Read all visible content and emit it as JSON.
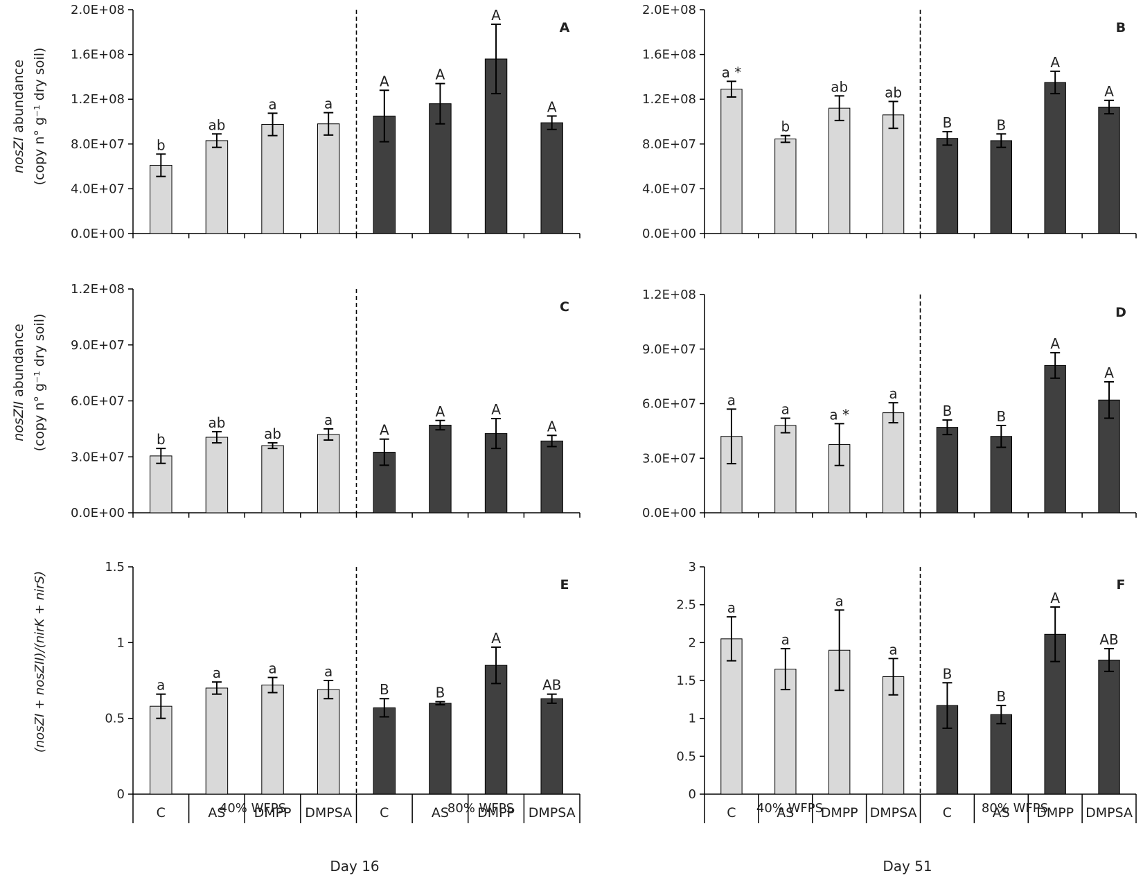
{
  "colors": {
    "low_wfps_fill": "#d9d9d9",
    "high_wfps_fill": "#404040",
    "outline": "#000000"
  },
  "bottom_labels": {
    "groups_left": [
      "40% WFPS",
      "80% WFPS"
    ],
    "groups_right": [
      "40% WFPS",
      "80% WFPS"
    ],
    "day_left": "Day 16",
    "day_right": "Day 51"
  },
  "y_labels": {
    "nosZI": {
      "gene": "nosZI",
      "suffix": " abundance",
      "unit": "(copy n° g⁻¹ dry soil)"
    },
    "nosZII": {
      "gene": "nosZII",
      "suffix": " abundance",
      "unit": "(copy n° g⁻¹ dry soil)"
    },
    "ratio": "(nosZI + nosZII)/(nirK + nirS)"
  },
  "chart_data": [
    {
      "panel": "A",
      "type": "bar",
      "categories": [
        "C",
        "AS",
        "DMPP",
        "DMPSA",
        "C",
        "AS",
        "DMPP",
        "DMPSA"
      ],
      "groups": [
        "40% WFPS",
        "80% WFPS"
      ],
      "ylim": [
        0,
        200000000.0
      ],
      "yticks": [
        "0.0E+00",
        "4.0E+07",
        "8.0E+07",
        "1.2E+08",
        "1.6E+08",
        "2.0E+08"
      ],
      "values": [
        61000000.0,
        83000000.0,
        97500000.0,
        98000000.0,
        105000000.0,
        116000000.0,
        156000000.0,
        99000000.0
      ],
      "errors": [
        10000000.0,
        6000000.0,
        10000000.0,
        10000000.0,
        23000000.0,
        18000000.0,
        31000000.0,
        6000000.0
      ],
      "letters": [
        "b",
        "ab",
        "a",
        "a",
        "A",
        "A",
        "A",
        "A"
      ]
    },
    {
      "panel": "B",
      "type": "bar",
      "categories": [
        "C",
        "AS",
        "DMPP",
        "DMPSA",
        "C",
        "AS",
        "DMPP",
        "DMPSA"
      ],
      "groups": [
        "40% WFPS",
        "80% WFPS"
      ],
      "ylim": [
        0,
        200000000.0
      ],
      "yticks": [
        "0.0E+00",
        "4.0E+07",
        "8.0E+07",
        "1.2E+08",
        "1.6E+08",
        "2.0E+08"
      ],
      "values": [
        129000000.0,
        84500000.0,
        112000000.0,
        106000000.0,
        85000000.0,
        83000000.0,
        135000000.0,
        113000000.0
      ],
      "errors": [
        7000000.0,
        3000000.0,
        11000000.0,
        12000000.0,
        6000000.0,
        6000000.0,
        10000000.0,
        6000000.0
      ],
      "letters": [
        "a *",
        "b",
        "ab",
        "ab",
        "B",
        "B",
        "A",
        "A"
      ]
    },
    {
      "panel": "C",
      "type": "bar",
      "categories": [
        "C",
        "AS",
        "DMPP",
        "DMPSA",
        "C",
        "AS",
        "DMPP",
        "DMPSA"
      ],
      "groups": [
        "40% WFPS",
        "80% WFPS"
      ],
      "ylim": [
        0,
        120000000.0
      ],
      "yticks": [
        "0.0E+00",
        "3.0E+07",
        "6.0E+07",
        "9.0E+07",
        "1.2E+08"
      ],
      "values": [
        30500000.0,
        40500000.0,
        36000000.0,
        42000000.0,
        32500000.0,
        47000000.0,
        42500000.0,
        38500000.0
      ],
      "errors": [
        4000000.0,
        3000000.0,
        1500000.0,
        3000000.0,
        7000000.0,
        2500000.0,
        8000000.0,
        3000000.0
      ],
      "letters": [
        "b",
        "ab",
        "ab",
        "a",
        "A",
        "A",
        "A",
        "A"
      ]
    },
    {
      "panel": "D",
      "type": "bar",
      "categories": [
        "C",
        "AS",
        "DMPP",
        "DMPSA",
        "C",
        "AS",
        "DMPP",
        "DMPSA"
      ],
      "groups": [
        "40% WFPS",
        "80% WFPS"
      ],
      "ylim": [
        0,
        120000000.0
      ],
      "yticks": [
        "0.0E+00",
        "3.0E+07",
        "6.0E+07",
        "9.0E+07",
        "1.2E+08"
      ],
      "values": [
        42000000.0,
        48000000.0,
        37500000.0,
        55000000.0,
        47000000.0,
        42000000.0,
        81000000.0,
        62000000.0
      ],
      "errors": [
        15000000.0,
        4000000.0,
        11500000.0,
        5500000.0,
        4000000.0,
        6000000.0,
        7000000.0,
        10000000.0
      ],
      "letters": [
        "a",
        "a",
        "a *",
        "a",
        "B",
        "B",
        "A",
        "A"
      ]
    },
    {
      "panel": "E",
      "type": "bar",
      "categories": [
        "C",
        "AS",
        "DMPP",
        "DMPSA",
        "C",
        "AS",
        "DMPP",
        "DMPSA"
      ],
      "groups": [
        "40% WFPS",
        "80% WFPS"
      ],
      "ylim": [
        0,
        1.5
      ],
      "yticks": [
        "0",
        "0.5",
        "1",
        "1.5"
      ],
      "values": [
        0.58,
        0.7,
        0.72,
        0.69,
        0.57,
        0.6,
        0.85,
        0.63
      ],
      "errors": [
        0.08,
        0.04,
        0.05,
        0.06,
        0.06,
        0.01,
        0.12,
        0.03
      ],
      "letters": [
        "a",
        "a",
        "a",
        "a",
        "B",
        "B",
        "A",
        "AB"
      ]
    },
    {
      "panel": "F",
      "type": "bar",
      "categories": [
        "C",
        "AS",
        "DMPP",
        "DMPSA",
        "C",
        "AS",
        "DMPP",
        "DMPSA"
      ],
      "groups": [
        "40% WFPS",
        "80% WFPS"
      ],
      "ylim": [
        0,
        3
      ],
      "yticks": [
        "0",
        "0.5",
        "1",
        "1.5",
        "2",
        "2.5",
        "3"
      ],
      "values": [
        2.05,
        1.65,
        1.9,
        1.55,
        1.17,
        1.05,
        2.11,
        1.77
      ],
      "errors": [
        0.29,
        0.27,
        0.53,
        0.24,
        0.3,
        0.12,
        0.36,
        0.15
      ],
      "letters": [
        "a",
        "a",
        "a",
        "a",
        "B",
        "B",
        "A",
        "AB"
      ]
    }
  ]
}
